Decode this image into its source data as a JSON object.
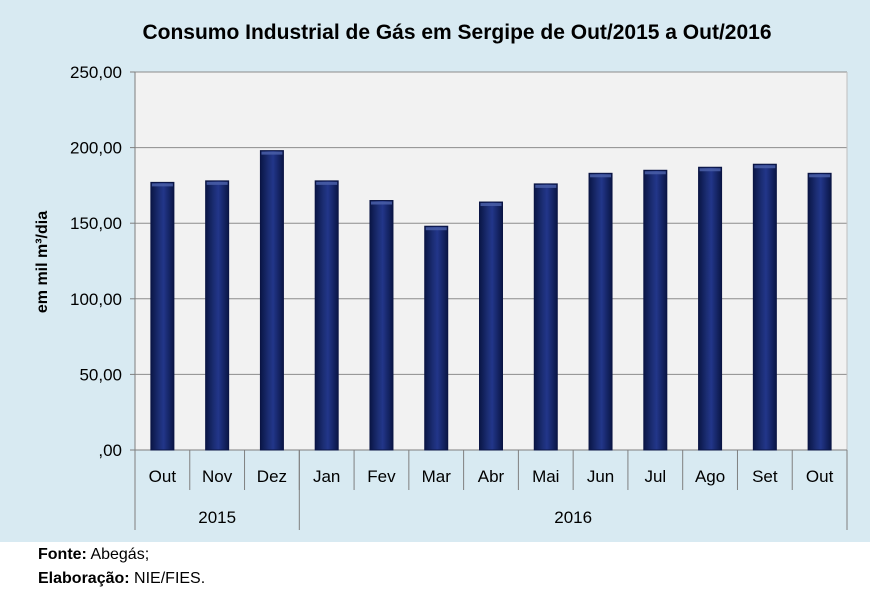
{
  "chart_data": {
    "type": "bar",
    "title": "Consumo Industrial de Gás em Sergipe de Out/2015 a Out/2016",
    "xlabel": "",
    "ylabel": "em mil m³/dia",
    "ylim": [
      0,
      250
    ],
    "yticks": [
      0,
      50,
      100,
      150,
      200,
      250
    ],
    "ytick_labels": [
      ",00",
      "50,00",
      "100,00",
      "150,00",
      "200,00",
      "250,00"
    ],
    "categories": [
      "Out",
      "Nov",
      "Dez",
      "Jan",
      "Fev",
      "Mar",
      "Abr",
      "Mai",
      "Jun",
      "Jul",
      "Ago",
      "Set",
      "Out"
    ],
    "values": [
      177,
      178,
      198,
      178,
      165,
      148,
      164,
      176,
      183,
      185,
      187,
      189,
      183
    ],
    "groups": [
      {
        "label": "2015",
        "count": 3
      },
      {
        "label": "2016",
        "count": 10
      }
    ],
    "grid": true,
    "legend": "none",
    "colors": {
      "bar": "#0f1f5c",
      "bar_highlight": "#4a5fa8",
      "plot_bg": "#f2f2f2",
      "panel_bg": "#d8eaf2",
      "grid": "#8c8c8c"
    }
  },
  "footer": {
    "source_label": "Fonte:",
    "source_value": "Abegás;",
    "credit_label": "Elaboração:",
    "credit_value": "NIE/FIES."
  }
}
